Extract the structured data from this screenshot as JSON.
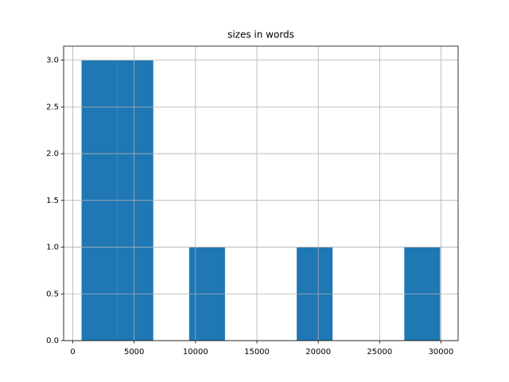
{
  "chart_data": {
    "type": "histogram",
    "title": "sizes in words",
    "bins": [
      714,
      3636,
      6558,
      9480,
      12402,
      15324,
      18246,
      21168,
      24090,
      27012,
      29934
    ],
    "values": [
      3,
      3,
      0,
      1,
      0,
      0,
      1,
      0,
      0,
      1
    ],
    "color": "#1f77b4",
    "xlim": [
      -747,
      31395
    ],
    "xticks": [
      0,
      5000,
      10000,
      15000,
      20000,
      25000,
      30000
    ],
    "ylim": [
      0,
      3.15
    ],
    "yticks": [
      {
        "value": 0,
        "label": "0.0"
      },
      0.5,
      {
        "value": 1,
        "label": "1.0"
      },
      1.5,
      {
        "value": 2,
        "label": "2.0"
      },
      2.5,
      {
        "value": 3,
        "label": "3.0"
      }
    ],
    "grid": true
  }
}
